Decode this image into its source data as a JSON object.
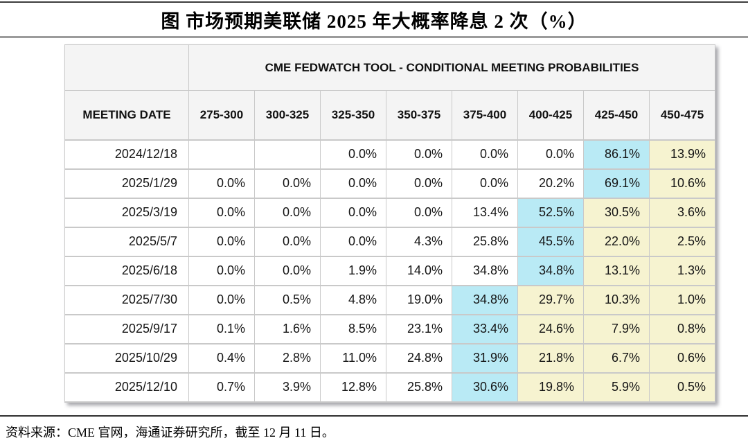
{
  "figure": {
    "title": "图  市场预期美联储 2025 年大概率降息 2 次（%）",
    "source_note": "资料来源：CME 官网，海通证券研究所，截至 12 月 11 日。"
  },
  "table": {
    "banner": "CME FEDWATCH TOOL - CONDITIONAL MEETING PROBABILITIES",
    "date_column_header": "MEETING DATE",
    "rate_range_headers": [
      "275-300",
      "300-325",
      "325-350",
      "350-375",
      "375-400",
      "400-425",
      "425-450",
      "450-475"
    ],
    "rows": [
      {
        "date": "2024/12/18",
        "values": [
          "",
          "",
          "0.0%",
          "0.0%",
          "0.0%",
          "0.0%",
          "86.1%",
          "13.9%"
        ],
        "highlights": [
          "none",
          "none",
          "none",
          "none",
          "none",
          "none",
          "cyan",
          "yellow"
        ]
      },
      {
        "date": "2025/1/29",
        "values": [
          "0.0%",
          "0.0%",
          "0.0%",
          "0.0%",
          "0.0%",
          "20.2%",
          "69.1%",
          "10.6%"
        ],
        "highlights": [
          "none",
          "none",
          "none",
          "none",
          "none",
          "none",
          "cyan",
          "yellow"
        ]
      },
      {
        "date": "2025/3/19",
        "values": [
          "0.0%",
          "0.0%",
          "0.0%",
          "0.0%",
          "13.4%",
          "52.5%",
          "30.5%",
          "3.6%"
        ],
        "highlights": [
          "none",
          "none",
          "none",
          "none",
          "none",
          "cyan",
          "yellow",
          "yellow"
        ]
      },
      {
        "date": "2025/5/7",
        "values": [
          "0.0%",
          "0.0%",
          "0.0%",
          "4.3%",
          "25.8%",
          "45.5%",
          "22.0%",
          "2.5%"
        ],
        "highlights": [
          "none",
          "none",
          "none",
          "none",
          "none",
          "cyan",
          "yellow",
          "yellow"
        ]
      },
      {
        "date": "2025/6/18",
        "values": [
          "0.0%",
          "0.0%",
          "1.9%",
          "14.0%",
          "34.8%",
          "34.8%",
          "13.1%",
          "1.3%"
        ],
        "highlights": [
          "none",
          "none",
          "none",
          "none",
          "none",
          "cyan",
          "yellow",
          "yellow"
        ]
      },
      {
        "date": "2025/7/30",
        "values": [
          "0.0%",
          "0.5%",
          "4.8%",
          "19.0%",
          "34.8%",
          "29.7%",
          "10.3%",
          "1.0%"
        ],
        "highlights": [
          "none",
          "none",
          "none",
          "none",
          "cyan",
          "yellow",
          "yellow",
          "yellow"
        ]
      },
      {
        "date": "2025/9/17",
        "values": [
          "0.1%",
          "1.6%",
          "8.5%",
          "23.1%",
          "33.4%",
          "24.6%",
          "7.9%",
          "0.8%"
        ],
        "highlights": [
          "none",
          "none",
          "none",
          "none",
          "cyan",
          "yellow",
          "yellow",
          "yellow"
        ]
      },
      {
        "date": "2025/10/29",
        "values": [
          "0.4%",
          "2.8%",
          "11.0%",
          "24.8%",
          "31.9%",
          "21.8%",
          "6.7%",
          "0.6%"
        ],
        "highlights": [
          "none",
          "none",
          "none",
          "none",
          "cyan",
          "yellow",
          "yellow",
          "yellow"
        ]
      },
      {
        "date": "2025/12/10",
        "values": [
          "0.7%",
          "3.9%",
          "12.8%",
          "25.8%",
          "30.6%",
          "19.8%",
          "5.9%",
          "0.5%"
        ],
        "highlights": [
          "none",
          "none",
          "none",
          "none",
          "cyan",
          "yellow",
          "yellow",
          "yellow"
        ]
      }
    ],
    "colors": {
      "highlight_cyan": "#b9eaf5",
      "highlight_yellow": "#f6f3d0",
      "header_bg": "#f4f4f4",
      "grid_border": "#c9c9c9"
    }
  }
}
